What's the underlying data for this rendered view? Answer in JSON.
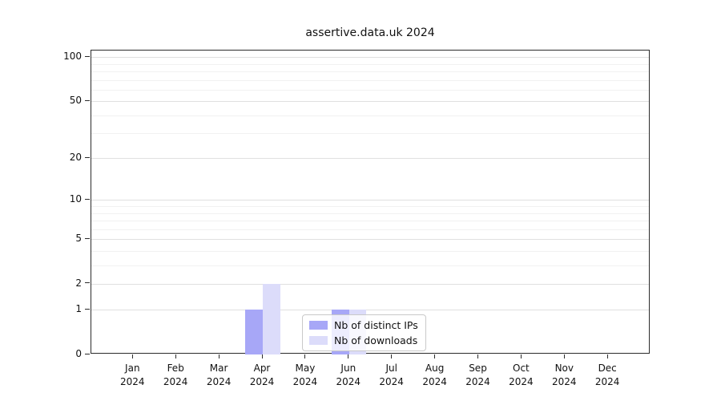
{
  "figure": {
    "title": "assertive.data.uk 2024"
  },
  "chart_data": {
    "type": "bar",
    "title": "assertive.data.uk 2024",
    "xlabel": "",
    "ylabel": "",
    "yscale": "log1p",
    "ylim": [
      0,
      111
    ],
    "yticks": [
      0,
      1,
      2,
      5,
      10,
      20,
      50,
      100
    ],
    "minor_gridlines": [
      3,
      4,
      6,
      7,
      8,
      9,
      30,
      40,
      60,
      70,
      80,
      90
    ],
    "grid": true,
    "legend_position": "lower center",
    "categories": [
      "Jan 2024",
      "Feb 2024",
      "Mar 2024",
      "Apr 2024",
      "May 2024",
      "Jun 2024",
      "Jul 2024",
      "Aug 2024",
      "Sep 2024",
      "Oct 2024",
      "Nov 2024",
      "Dec 2024"
    ],
    "series": [
      {
        "name": "Nb of distinct IPs",
        "color": "#a7a7f7",
        "values": [
          0,
          0,
          0,
          1,
          0,
          1,
          0,
          0,
          0,
          0,
          0,
          0
        ]
      },
      {
        "name": "Nb of downloads",
        "color": "#dcdcfa",
        "values": [
          0,
          0,
          0,
          2,
          0,
          1,
          0,
          0,
          0,
          0,
          0,
          0
        ]
      }
    ]
  },
  "colors": {
    "axis": "#2b2b2b",
    "major_grid": "#e0e0e0",
    "minor_grid": "#f1f1f1",
    "legend_border": "#c9c9c9"
  }
}
